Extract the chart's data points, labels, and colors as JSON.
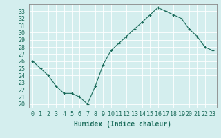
{
  "x": [
    0,
    1,
    2,
    3,
    4,
    5,
    6,
    7,
    8,
    9,
    10,
    11,
    12,
    13,
    14,
    15,
    16,
    17,
    18,
    19,
    20,
    21,
    22,
    23
  ],
  "y": [
    26.0,
    25.0,
    24.0,
    22.5,
    21.5,
    21.5,
    21.0,
    20.0,
    22.5,
    25.5,
    27.5,
    28.5,
    29.5,
    30.5,
    31.5,
    32.5,
    33.5,
    33.0,
    32.5,
    32.0,
    30.5,
    29.5,
    28.0,
    27.5
  ],
  "line_color": "#1a6b5a",
  "marker": "+",
  "marker_size": 3,
  "bg_color": "#d4eeee",
  "grid_color": "#ffffff",
  "xlabel": "Humidex (Indice chaleur)",
  "ylabel_ticks": [
    20,
    21,
    22,
    23,
    24,
    25,
    26,
    27,
    28,
    29,
    30,
    31,
    32,
    33
  ],
  "ylim": [
    19.5,
    34.0
  ],
  "xlim": [
    -0.5,
    23.5
  ],
  "tick_fontsize": 6,
  "xlabel_fontsize": 7,
  "label_color": "#1a6b5a",
  "spine_color": "#888888"
}
